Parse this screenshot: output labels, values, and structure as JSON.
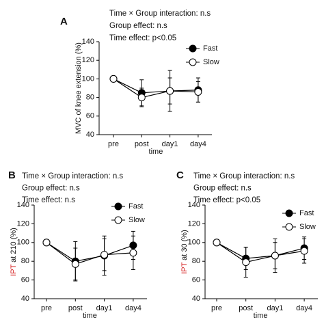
{
  "chart_data": [
    {
      "type": "line",
      "panel_label": "A",
      "annotations": [
        "Time × Group interaction: n.s",
        "Group effect: n.s",
        "Time effect: p<0.05"
      ],
      "ylabel": "MVC of knee extension (%)",
      "xlabel": "time",
      "categories": [
        "pre",
        "post",
        "day1",
        "day4"
      ],
      "ylim": [
        40,
        140
      ],
      "yticks": [
        40,
        60,
        80,
        100,
        120,
        140
      ],
      "series": [
        {
          "name": "Fast",
          "color": "#000000",
          "values": [
            100,
            85,
            87,
            88
          ],
          "errors": [
            0,
            14,
            22,
            13
          ]
        },
        {
          "name": "Slow",
          "color": "#ffffff",
          "values": [
            100,
            80,
            87,
            86
          ],
          "errors": [
            0,
            10,
            14,
            11
          ]
        }
      ]
    },
    {
      "type": "line",
      "panel_label": "B",
      "annotations": [
        "Time × Group interaction: n.s",
        "Group effect: n.s",
        "Time effect: n.s"
      ],
      "ylabel": {
        "highlight": "IPT",
        "text": "at 210 (%)"
      },
      "xlabel": "time",
      "categories": [
        "pre",
        "post",
        "day1",
        "day4"
      ],
      "ylim": [
        40,
        140
      ],
      "yticks": [
        40,
        60,
        80,
        100,
        120,
        140
      ],
      "series": [
        {
          "name": "Fast",
          "color": "#000000",
          "values": [
            100,
            80,
            86,
            97
          ],
          "errors": [
            0,
            21,
            21,
            15
          ]
        },
        {
          "name": "Slow",
          "color": "#ffffff",
          "values": [
            100,
            77,
            87,
            89
          ],
          "errors": [
            0,
            17,
            17,
            18
          ]
        }
      ]
    },
    {
      "type": "line",
      "panel_label": "C",
      "annotations": [
        "Time × Group interaction: n.s",
        "Group effect: n.s",
        "Time effect: p<0.05"
      ],
      "ylabel": {
        "highlight": "IPT",
        "text": "at 30 (%)"
      },
      "xlabel": "time",
      "categories": [
        "pre",
        "post",
        "day1",
        "day4"
      ],
      "ylim": [
        40,
        140
      ],
      "yticks": [
        40,
        60,
        80,
        100,
        120,
        140
      ],
      "series": [
        {
          "name": "Fast",
          "color": "#000000",
          "values": [
            100,
            83,
            86,
            94
          ],
          "errors": [
            0,
            12,
            18,
            12
          ]
        },
        {
          "name": "Slow",
          "color": "#ffffff",
          "values": [
            100,
            79,
            86,
            91
          ],
          "errors": [
            0,
            16,
            14,
            13
          ]
        }
      ]
    }
  ]
}
